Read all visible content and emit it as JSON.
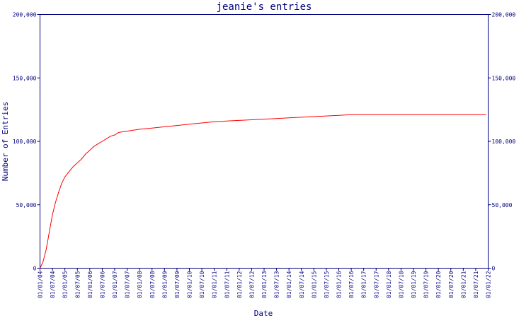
{
  "chart_data": {
    "type": "line",
    "title": "jeanie's entries",
    "xlabel": "Date",
    "ylabel": "Number of Entries",
    "ylim": [
      0,
      200000
    ],
    "y_ticks": [
      {
        "value": 0,
        "label": "0"
      },
      {
        "value": 50000,
        "label": "50,000"
      },
      {
        "value": 100000,
        "label": "100,000"
      },
      {
        "value": 150000,
        "label": "150,000"
      },
      {
        "value": 200000,
        "label": "200,000"
      }
    ],
    "x_ticks": [
      "01/01/04",
      "01/07/04",
      "01/01/05",
      "01/07/05",
      "01/01/06",
      "01/07/06",
      "01/01/07",
      "01/07/07",
      "01/01/08",
      "01/07/08",
      "01/01/09",
      "01/07/09",
      "01/01/10",
      "01/07/10",
      "01/01/11",
      "01/07/11",
      "01/01/12",
      "01/07/12",
      "01/01/13",
      "01/07/13",
      "01/01/14",
      "01/07/14",
      "01/01/15",
      "01/07/15",
      "01/01/16",
      "01/07/16",
      "01/01/17",
      "01/07/17",
      "01/01/18",
      "01/07/18",
      "01/01/19",
      "01/07/19",
      "01/01/20",
      "01/07/20",
      "01/01/21",
      "01/07/21",
      "01/01/22"
    ],
    "grid": false,
    "line_color": "#ff0000",
    "axis_color": "#000080",
    "series": [
      {
        "x": [
          "2004-01-01",
          "2004-02-15",
          "2004-04-01",
          "2004-05-15",
          "2004-07-01",
          "2004-08-15",
          "2004-10-01",
          "2004-11-15",
          "2005-01-01",
          "2005-03-01",
          "2005-05-01",
          "2005-07-01",
          "2005-09-01",
          "2005-11-01",
          "2006-01-01",
          "2006-03-01",
          "2006-05-01",
          "2006-07-01",
          "2006-09-01",
          "2006-11-01",
          "2007-01-01",
          "2007-03-01",
          "2007-07-01",
          "2008-01-01",
          "2008-07-01",
          "2009-01-01",
          "2009-07-01",
          "2010-01-01",
          "2010-07-01",
          "2011-01-01",
          "2011-07-01",
          "2012-01-01",
          "2012-07-01",
          "2013-01-01",
          "2013-07-01",
          "2014-01-01",
          "2014-07-01",
          "2015-01-01",
          "2015-07-01",
          "2016-01-01",
          "2016-07-01",
          "2017-01-01",
          "2017-07-01",
          "2018-01-01",
          "2018-07-01",
          "2019-01-01",
          "2019-07-01",
          "2020-01-01",
          "2020-07-01",
          "2021-01-01",
          "2021-07-01",
          "2021-12-01"
        ],
        "y": [
          0,
          5000,
          15000,
          28000,
          42000,
          52000,
          60000,
          67000,
          72000,
          76000,
          80000,
          83000,
          86000,
          90000,
          93000,
          96000,
          98000,
          100000,
          102000,
          104000,
          105000,
          107000,
          108000,
          109500,
          110500,
          111500,
          112500,
          113500,
          114500,
          115500,
          116000,
          116500,
          117000,
          117500,
          118000,
          118500,
          119000,
          119500,
          120000,
          120500,
          121000,
          121000,
          121000,
          121000,
          121000,
          121000,
          121000,
          121000,
          121000,
          121000,
          121000,
          121000
        ]
      }
    ]
  }
}
